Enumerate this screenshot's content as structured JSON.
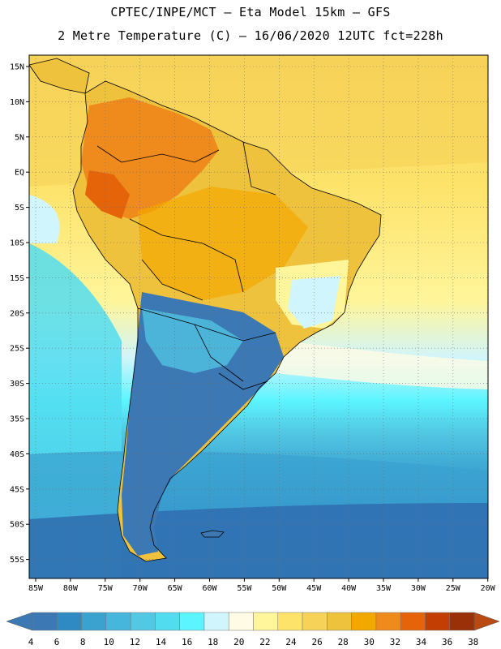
{
  "header": {
    "line1": "CPTEC/INPE/MCT –  Eta Model 15km – GFS",
    "line2": "2 Metre Temperature (C) – 16/06/2020 12UTC fct=228h"
  },
  "map": {
    "lat_labels": [
      "15N",
      "10N",
      "5N",
      "EQ",
      "5S",
      "10S",
      "15S",
      "20S",
      "25S",
      "30S",
      "35S",
      "40S",
      "45S",
      "50S",
      "55S"
    ],
    "lon_labels": [
      "85W",
      "80W",
      "75W",
      "70W",
      "65W",
      "60W",
      "55W",
      "50W",
      "45W",
      "40W",
      "35W",
      "30W",
      "25W",
      "20W"
    ]
  },
  "colorbar": {
    "labels": [
      "4",
      "6",
      "8",
      "10",
      "12",
      "14",
      "16",
      "18",
      "20",
      "22",
      "24",
      "26",
      "28",
      "30",
      "32",
      "34",
      "36",
      "38"
    ],
    "colors": [
      "#3c78b4",
      "#2f8ac4",
      "#3ba2d0",
      "#46b6dc",
      "#52c8e4",
      "#52dcf0",
      "#5cf5ff",
      "#d0f5fc",
      "#fffbe4",
      "#fff59a",
      "#fde36a",
      "#f7d258",
      "#efc23e",
      "#f3a800",
      "#ef8a1c",
      "#e5640a",
      "#c33e02",
      "#9a3008"
    ],
    "low_color": "#3c78b4",
    "high_color": "#b84a12"
  }
}
